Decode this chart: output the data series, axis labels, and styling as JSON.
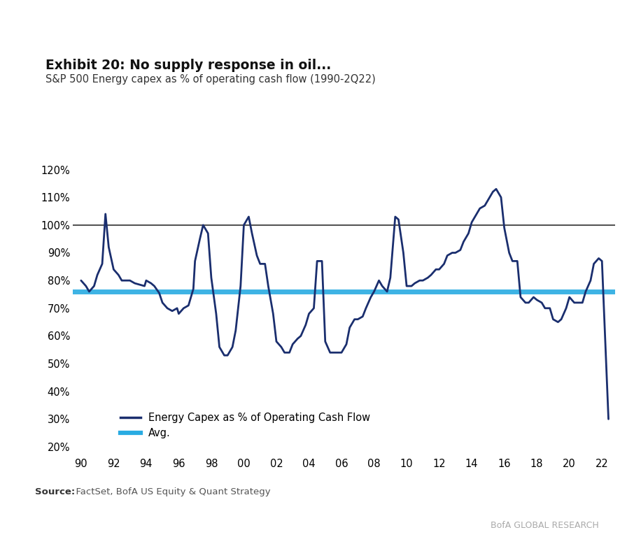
{
  "title_main": "Exhibit 20: No supply response in oil...",
  "title_sub": "S&P 500 Energy capex as % of operating cash flow (1990-2Q22)",
  "source_bold": "Source:",
  "source_rest": "  FactSet, BofA US Equity & Quant Strategy",
  "branding": "BofA GLOBAL RESEARCH",
  "avg_value": 0.76,
  "line_color": "#1a2e6e",
  "avg_color": "#29abe2",
  "hline_color": "#555555",
  "hline_value": 1.0,
  "yticks": [
    0.2,
    0.3,
    0.4,
    0.5,
    0.6,
    0.7,
    0.8,
    0.9,
    1.0,
    1.1,
    1.2
  ],
  "xtick_labels": [
    "90",
    "92",
    "94",
    "96",
    "98",
    "00",
    "02",
    "04",
    "06",
    "08",
    "10",
    "12",
    "14",
    "16",
    "18",
    "20",
    "22"
  ],
  "xvals": [
    1990.0,
    1990.3,
    1990.5,
    1990.8,
    1991.0,
    1991.3,
    1991.5,
    1991.7,
    1992.0,
    1992.3,
    1992.5,
    1992.7,
    1993.0,
    1993.3,
    1993.6,
    1993.9,
    1994.0,
    1994.3,
    1994.5,
    1994.8,
    1995.0,
    1995.3,
    1995.6,
    1995.9,
    1996.0,
    1996.3,
    1996.6,
    1996.9,
    1997.0,
    1997.3,
    1997.5,
    1997.8,
    1998.0,
    1998.3,
    1998.5,
    1998.8,
    1999.0,
    1999.3,
    1999.5,
    1999.8,
    2000.0,
    2000.3,
    2000.5,
    2000.8,
    2001.0,
    2001.3,
    2001.5,
    2001.8,
    2002.0,
    2002.3,
    2002.5,
    2002.8,
    2003.0,
    2003.3,
    2003.5,
    2003.8,
    2004.0,
    2004.3,
    2004.5,
    2004.8,
    2005.0,
    2005.3,
    2005.5,
    2005.8,
    2006.0,
    2006.3,
    2006.5,
    2006.8,
    2007.0,
    2007.3,
    2007.5,
    2007.8,
    2008.0,
    2008.3,
    2008.5,
    2008.8,
    2009.0,
    2009.3,
    2009.5,
    2009.8,
    2010.0,
    2010.3,
    2010.5,
    2010.8,
    2011.0,
    2011.3,
    2011.5,
    2011.8,
    2012.0,
    2012.3,
    2012.5,
    2012.8,
    2013.0,
    2013.3,
    2013.5,
    2013.8,
    2014.0,
    2014.3,
    2014.5,
    2014.8,
    2015.0,
    2015.3,
    2015.5,
    2015.8,
    2016.0,
    2016.3,
    2016.5,
    2016.8,
    2017.0,
    2017.3,
    2017.5,
    2017.8,
    2018.0,
    2018.3,
    2018.5,
    2018.8,
    2019.0,
    2019.3,
    2019.5,
    2019.8,
    2020.0,
    2020.3,
    2020.5,
    2020.8,
    2021.0,
    2021.3,
    2021.5,
    2021.8,
    2022.0,
    2022.4
  ],
  "yvals": [
    0.8,
    0.78,
    0.76,
    0.78,
    0.82,
    0.86,
    1.04,
    0.92,
    0.84,
    0.82,
    0.8,
    0.8,
    0.8,
    0.79,
    0.785,
    0.78,
    0.8,
    0.79,
    0.78,
    0.755,
    0.72,
    0.7,
    0.69,
    0.7,
    0.68,
    0.7,
    0.71,
    0.77,
    0.87,
    0.95,
    1.0,
    0.97,
    0.81,
    0.68,
    0.56,
    0.53,
    0.53,
    0.56,
    0.62,
    0.78,
    1.0,
    1.03,
    0.97,
    0.89,
    0.86,
    0.86,
    0.78,
    0.68,
    0.58,
    0.56,
    0.54,
    0.54,
    0.57,
    0.59,
    0.6,
    0.64,
    0.68,
    0.7,
    0.87,
    0.87,
    0.58,
    0.54,
    0.54,
    0.54,
    0.54,
    0.57,
    0.63,
    0.66,
    0.66,
    0.67,
    0.7,
    0.74,
    0.76,
    0.8,
    0.78,
    0.76,
    0.81,
    1.03,
    1.02,
    0.9,
    0.78,
    0.78,
    0.79,
    0.8,
    0.8,
    0.81,
    0.82,
    0.84,
    0.84,
    0.86,
    0.89,
    0.9,
    0.9,
    0.91,
    0.94,
    0.97,
    1.01,
    1.04,
    1.06,
    1.07,
    1.09,
    1.12,
    1.13,
    1.1,
    0.99,
    0.9,
    0.87,
    0.87,
    0.74,
    0.72,
    0.72,
    0.74,
    0.73,
    0.72,
    0.7,
    0.7,
    0.66,
    0.65,
    0.66,
    0.7,
    0.74,
    0.72,
    0.72,
    0.72,
    0.76,
    0.8,
    0.86,
    0.88,
    0.87,
    0.3
  ],
  "background_color": "#ffffff",
  "sidebar_color": "#1a5faf",
  "border_color": "#cccccc"
}
